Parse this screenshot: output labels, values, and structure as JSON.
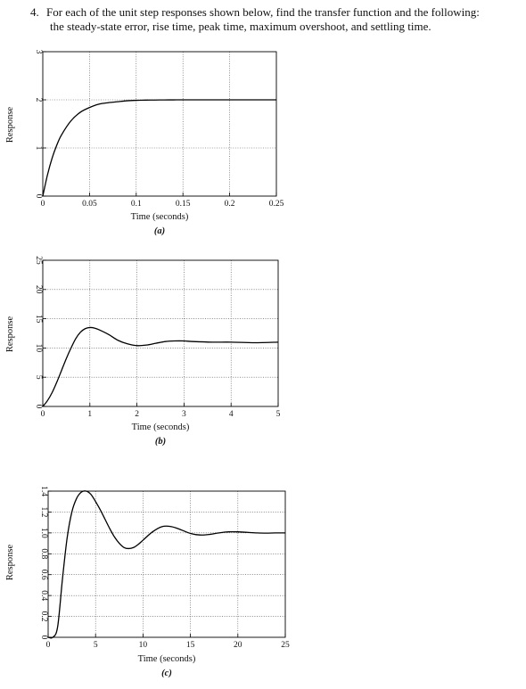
{
  "question": {
    "number": "4.",
    "line1": "For each of the unit step responses shown below, find the transfer function and the following:",
    "line2": "the steady-state error, rise time, peak time, maximum overshoot, and settling time."
  },
  "chart_data": [
    {
      "type": "line",
      "caption": "(a)",
      "xlabel": "Time (seconds)",
      "ylabel": "Response",
      "xlim": [
        0,
        0.25
      ],
      "ylim": [
        0,
        3
      ],
      "xticks": [
        "0",
        "0.05",
        "0.1",
        "0.15",
        "0.2",
        "0.25"
      ],
      "xtick_values": [
        0,
        0.05,
        0.1,
        0.15,
        0.2,
        0.25
      ],
      "yticks": [
        "0",
        "1",
        "2",
        "3"
      ],
      "ytick_values": [
        0,
        1,
        2,
        3
      ],
      "grid": true,
      "x": [
        0,
        0.005,
        0.01,
        0.015,
        0.02,
        0.03,
        0.04,
        0.05,
        0.06,
        0.07,
        0.08,
        0.09,
        0.1,
        0.11,
        0.12,
        0.13,
        0.14,
        0.15,
        0.17,
        0.2,
        0.22,
        0.25
      ],
      "y": [
        0,
        0.44,
        0.79,
        1.06,
        1.27,
        1.56,
        1.74,
        1.84,
        1.91,
        1.94,
        1.96,
        1.98,
        1.99,
        1.994,
        1.996,
        1.998,
        1.999,
        2.0,
        2.0,
        2.0,
        2.0,
        2.0
      ]
    },
    {
      "type": "line",
      "caption": "(b)",
      "xlabel": "Time (seconds)",
      "ylabel": "Response",
      "xlim": [
        0,
        5
      ],
      "ylim": [
        0,
        25
      ],
      "xticks": [
        "0",
        "1",
        "2",
        "3",
        "4",
        "5"
      ],
      "xtick_values": [
        0,
        1,
        2,
        3,
        4,
        5
      ],
      "yticks": [
        "0",
        "5",
        "10",
        "15",
        "20",
        "25"
      ],
      "ytick_values": [
        0,
        5,
        10,
        15,
        20,
        25
      ],
      "grid": true,
      "x": [
        0,
        0.1,
        0.2,
        0.3,
        0.4,
        0.5,
        0.6,
        0.7,
        0.8,
        0.9,
        1.0,
        1.1,
        1.2,
        1.4,
        1.6,
        1.8,
        2.0,
        2.2,
        2.4,
        2.6,
        2.8,
        3.0,
        3.2,
        3.6,
        4.0,
        4.5,
        5.0
      ],
      "y": [
        0,
        1.0,
        2.4,
        4.2,
        6.2,
        8.2,
        10.0,
        11.6,
        12.7,
        13.3,
        13.5,
        13.4,
        13.1,
        12.3,
        11.3,
        10.7,
        10.4,
        10.5,
        10.8,
        11.1,
        11.2,
        11.2,
        11.1,
        11.0,
        11.0,
        10.9,
        11.0
      ]
    },
    {
      "type": "line",
      "caption": "(c)",
      "xlabel": "Time (seconds)",
      "ylabel": "Response",
      "xlim": [
        0,
        25
      ],
      "ylim": [
        0,
        1.4
      ],
      "xticks": [
        "0",
        "5",
        "10",
        "15",
        "20",
        "25"
      ],
      "xtick_values": [
        0,
        5,
        10,
        15,
        20,
        25
      ],
      "yticks": [
        "0",
        "0.2",
        "0.4",
        "0.6",
        "0.8",
        "1.0",
        "1.2",
        "1.4"
      ],
      "ytick_values": [
        0,
        0.2,
        0.4,
        0.6,
        0.8,
        1.0,
        1.2,
        1.4
      ],
      "grid": true,
      "x": [
        0,
        0.5,
        1.0,
        1.5,
        2.0,
        2.5,
        3.0,
        3.5,
        4.0,
        4.5,
        5.0,
        5.5,
        6.0,
        6.5,
        7.0,
        7.5,
        8.0,
        8.5,
        9.0,
        9.5,
        10.0,
        11.0,
        12.0,
        13.0,
        14.0,
        15.0,
        16.0,
        17.0,
        18.0,
        19.0,
        20.0,
        21.0,
        22.0,
        23.0,
        24.0,
        25.0
      ],
      "y": [
        0,
        0.0,
        0.1,
        0.55,
        0.95,
        1.2,
        1.33,
        1.39,
        1.4,
        1.37,
        1.3,
        1.22,
        1.13,
        1.04,
        0.96,
        0.9,
        0.86,
        0.85,
        0.86,
        0.89,
        0.93,
        1.01,
        1.06,
        1.06,
        1.03,
        0.995,
        0.98,
        0.985,
        1.0,
        1.01,
        1.01,
        1.005,
        1.0,
        0.998,
        1.0,
        1.0
      ]
    }
  ]
}
